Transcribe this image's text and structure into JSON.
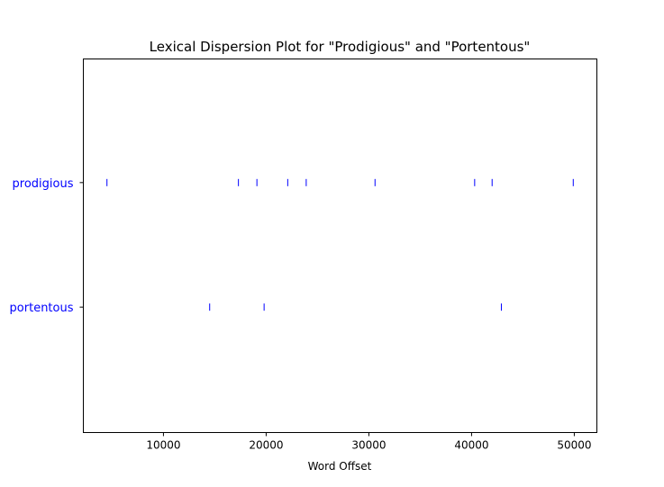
{
  "chart_data": {
    "type": "scatter",
    "title": "Lexical Dispersion Plot for \"Prodigious\" and \"Portentous\"",
    "xlabel": "Word Offset",
    "ylabel": "",
    "xlim": [
      2200,
      52200
    ],
    "xticks": [
      10000,
      20000,
      30000,
      40000,
      50000
    ],
    "xtick_labels": [
      "10000",
      "20000",
      "30000",
      "40000",
      "50000"
    ],
    "grid": false,
    "marker": "|",
    "marker_color": "#0000ff",
    "label_color": "#0000ff",
    "series": [
      {
        "name": "prodigious",
        "x": [
          4500,
          17300,
          19100,
          22100,
          23900,
          30600,
          40300,
          42000,
          49900
        ]
      },
      {
        "name": "portentous",
        "x": [
          14500,
          19800,
          42900
        ]
      }
    ]
  }
}
